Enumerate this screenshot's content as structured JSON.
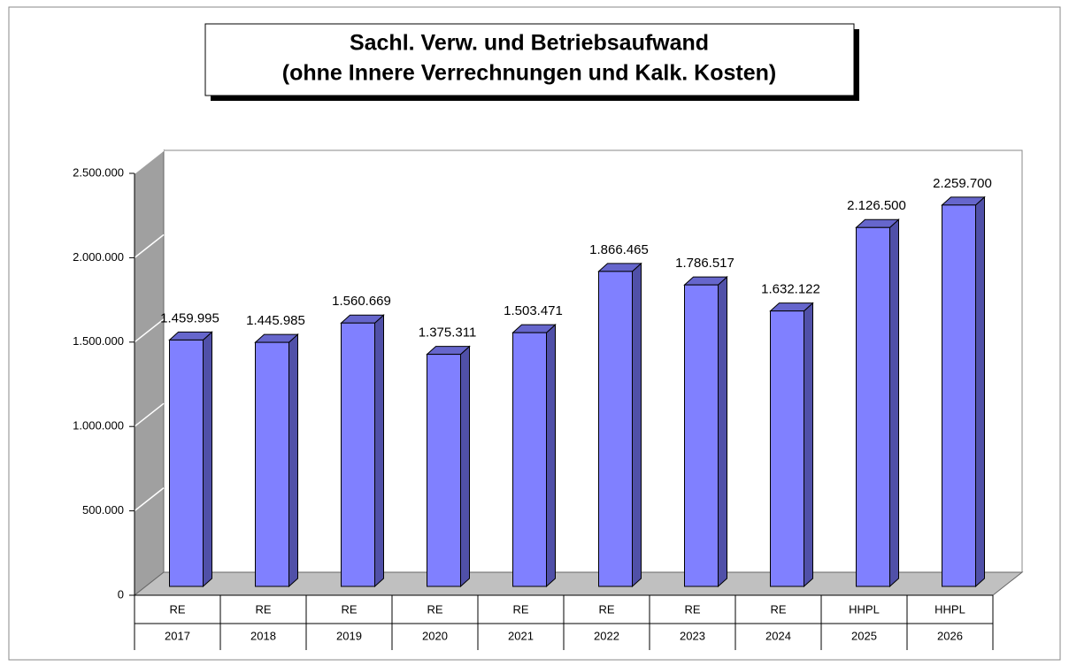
{
  "chart_data": {
    "type": "bar3d",
    "title": [
      "Sachl. Verw. und Betriebsaufwand",
      "(ohne Innere Verrechnungen und Kalk. Kosten)"
    ],
    "categories": [
      [
        "RE",
        "2017"
      ],
      [
        "RE",
        "2018"
      ],
      [
        "RE",
        "2019"
      ],
      [
        "RE",
        "2020"
      ],
      [
        "RE",
        "2021"
      ],
      [
        "RE",
        "2022"
      ],
      [
        "RE",
        "2023"
      ],
      [
        "RE",
        "2024"
      ],
      [
        "HHPL",
        "2025"
      ],
      [
        "HHPL",
        "2026"
      ]
    ],
    "values": [
      1459995,
      1445985,
      1560669,
      1375311,
      1503471,
      1866465,
      1786517,
      1632122,
      2126500,
      2259700
    ],
    "value_labels": [
      "1.459.995",
      "1.445.985",
      "1.560.669",
      "1.375.311",
      "1.503.471",
      "1.866.465",
      "1.786.517",
      "1.632.122",
      "2.126.500",
      "2.259.700"
    ],
    "color": "#8080ff",
    "ylim": [
      0,
      2500000
    ],
    "yticks": [
      0,
      {
        "value": 500000,
        "label": "500.000"
      },
      {
        "value": 1000000,
        "label": "1.000.000"
      },
      {
        "value": 1500000,
        "label": "1.500.000"
      },
      {
        "value": 2000000,
        "label": "2.000.000"
      },
      {
        "value": 2500000,
        "label": "2.500.000"
      }
    ],
    "grid": true
  }
}
